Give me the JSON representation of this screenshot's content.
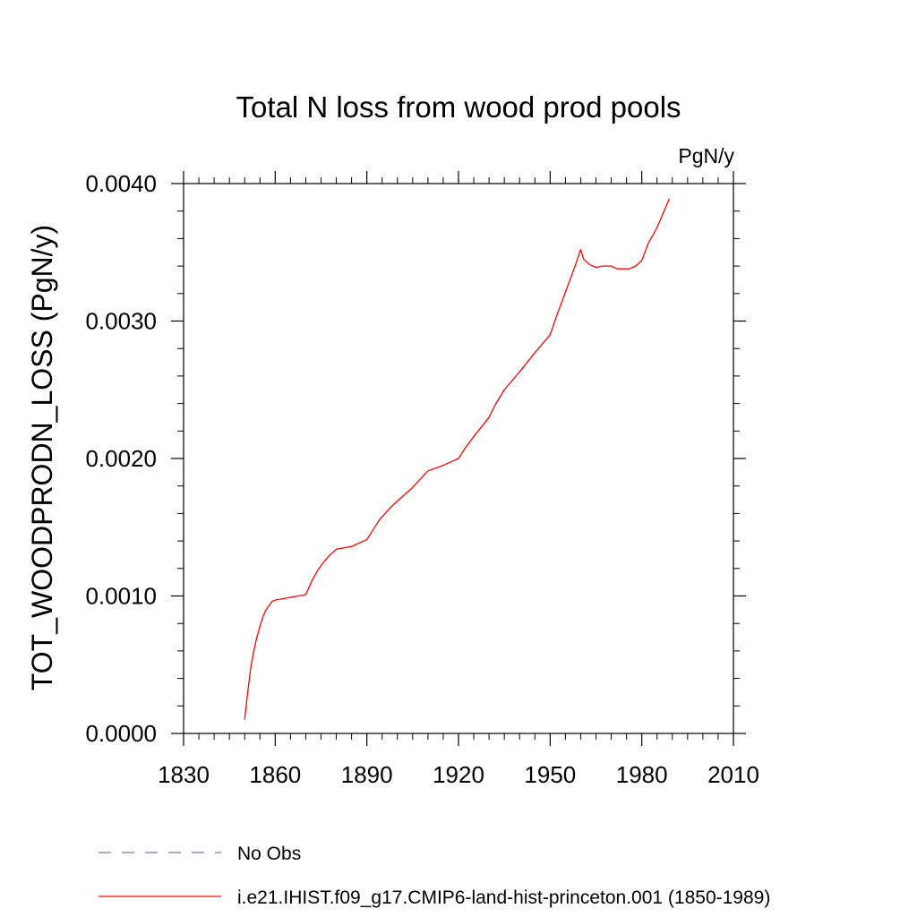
{
  "chart_data": {
    "type": "line",
    "title": "Total N loss from wood prod pools",
    "units": "PgN/y",
    "xlabel": "",
    "ylabel": "TOT_WOODPRODN_LOSS  (PgN/y)",
    "xlim": [
      1830,
      2010
    ],
    "ylim": [
      0.0,
      0.004
    ],
    "xticks": [
      1830,
      1860,
      1890,
      1920,
      1950,
      1980,
      2010
    ],
    "xtick_labels": [
      "1830",
      "1860",
      "1890",
      "1920",
      "1950",
      "1980",
      "2010"
    ],
    "yticks": [
      0.0,
      0.001,
      0.002,
      0.003,
      0.004
    ],
    "ytick_labels": [
      "0.0000",
      "0.0010",
      "0.0020",
      "0.0030",
      "0.0040"
    ],
    "grid": false,
    "legend_position": "bottom",
    "series": [
      {
        "name": "No Obs",
        "style": "dashed",
        "color": "#7b74b8",
        "x": [],
        "y": []
      },
      {
        "name": "i.e21.IHIST.f09_g17.CMIP6-land-hist-princeton.001 (1850-1989)",
        "style": "solid",
        "color": "#ff0000",
        "x": [
          1850,
          1851,
          1852,
          1853,
          1854,
          1855,
          1856,
          1857,
          1858,
          1859,
          1860,
          1865,
          1870,
          1872,
          1874,
          1876,
          1878,
          1880,
          1885,
          1890,
          1892,
          1894,
          1896,
          1898,
          1900,
          1905,
          1910,
          1915,
          1920,
          1922,
          1925,
          1930,
          1932,
          1935,
          1940,
          1945,
          1950,
          1952,
          1955,
          1958,
          1960,
          1961,
          1963,
          1965,
          1967,
          1970,
          1972,
          1974,
          1976,
          1978,
          1980,
          1982,
          1985,
          1989
        ],
        "y": [
          0.0001,
          0.0003,
          0.00048,
          0.0006,
          0.0007,
          0.00078,
          0.00085,
          0.0009,
          0.00093,
          0.00096,
          0.00097,
          0.00099,
          0.00101,
          0.00111,
          0.00119,
          0.00125,
          0.0013,
          0.00134,
          0.00136,
          0.00141,
          0.00148,
          0.00155,
          0.0016,
          0.00165,
          0.00169,
          0.00179,
          0.00191,
          0.00195,
          0.002,
          0.00207,
          0.00216,
          0.0023,
          0.00239,
          0.0025,
          0.00263,
          0.00277,
          0.0029,
          0.00303,
          0.00321,
          0.00339,
          0.00352,
          0.00345,
          0.00341,
          0.00339,
          0.0034,
          0.0034,
          0.00338,
          0.00338,
          0.00338,
          0.0034,
          0.00344,
          0.00356,
          0.00368,
          0.00389
        ]
      }
    ]
  }
}
